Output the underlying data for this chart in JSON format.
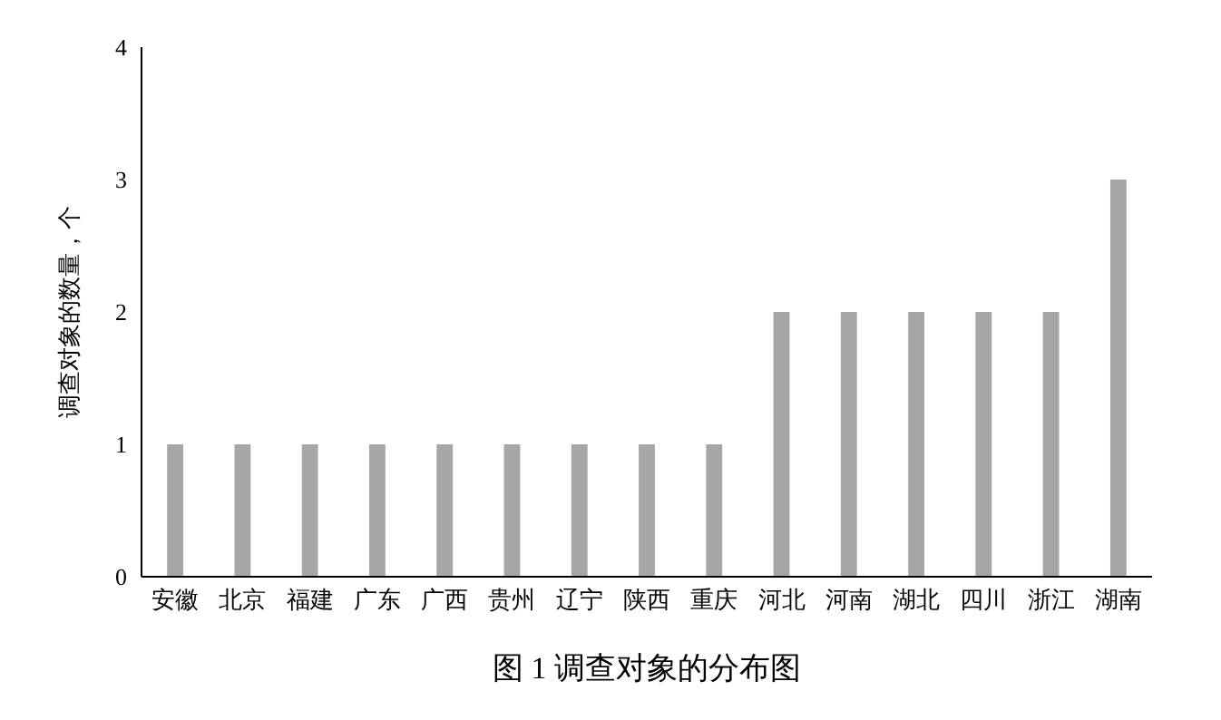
{
  "chart_data": {
    "type": "bar",
    "title": "图 1  调查对象的分布图",
    "ylabel": "调查对象的数量，个",
    "categories": [
      "安徽",
      "北京",
      "福建",
      "广东",
      "广西",
      "贵州",
      "辽宁",
      "陕西",
      "重庆",
      "河北",
      "河南",
      "湖北",
      "四川",
      "浙江",
      "湖南"
    ],
    "values": [
      1,
      1,
      1,
      1,
      1,
      1,
      1,
      1,
      1,
      2,
      2,
      2,
      2,
      2,
      3
    ],
    "color": "#a6a6a8",
    "ylim": [
      0,
      4
    ],
    "yticks": [
      0,
      1,
      2,
      3,
      4
    ],
    "grid": false
  }
}
